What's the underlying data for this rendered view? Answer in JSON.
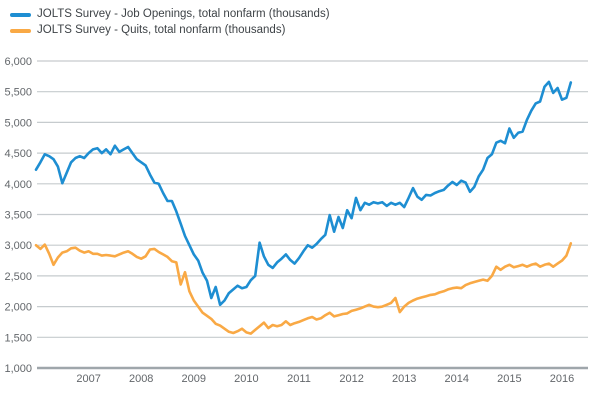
{
  "legend": {
    "series": [
      {
        "label": "JOLTS Survey - Job Openings, total nonfarm (thousands)",
        "color": "#1e8ed2"
      },
      {
        "label": "JOLTS Survey - Quits, total nonfarm (thousands)",
        "color": "#f9a945"
      }
    ]
  },
  "chart_data": {
    "type": "line",
    "title": "",
    "x_start": "2006-01",
    "x_end": "2016-03",
    "x_frequency": "monthly",
    "x_tick_labels": [
      "2007",
      "2008",
      "2009",
      "2010",
      "2011",
      "2012",
      "2013",
      "2014",
      "2015",
      "2016"
    ],
    "x_tick_month_index": [
      12,
      24,
      36,
      48,
      60,
      72,
      84,
      96,
      108,
      120
    ],
    "y_ticks": [
      1000,
      1500,
      2000,
      2500,
      3000,
      3500,
      4000,
      4500,
      5000,
      5500,
      6000
    ],
    "y_tick_labels": [
      "1,000",
      "1,500",
      "2,000",
      "2,500",
      "3,000",
      "3,500",
      "4,000",
      "4,500",
      "5,000",
      "5,500",
      "6,000"
    ],
    "ylim": [
      1000,
      6000
    ],
    "grid": "horizontal",
    "legend_position": "top-left",
    "series": [
      {
        "name": "JOLTS Survey - Job Openings, total nonfarm (thousands)",
        "color": "#1e8ed2",
        "values": [
          4230,
          4350,
          4480,
          4450,
          4400,
          4280,
          4010,
          4180,
          4350,
          4420,
          4450,
          4420,
          4500,
          4560,
          4580,
          4500,
          4560,
          4480,
          4620,
          4520,
          4560,
          4600,
          4500,
          4400,
          4350,
          4300,
          4150,
          4020,
          4000,
          3850,
          3720,
          3720,
          3550,
          3350,
          3150,
          3000,
          2850,
          2750,
          2550,
          2420,
          2140,
          2320,
          2030,
          2100,
          2220,
          2280,
          2340,
          2300,
          2320,
          2430,
          2500,
          3040,
          2820,
          2680,
          2630,
          2720,
          2780,
          2850,
          2760,
          2700,
          2790,
          2900,
          3000,
          2960,
          3020,
          3100,
          3170,
          3490,
          3220,
          3460,
          3280,
          3570,
          3440,
          3770,
          3570,
          3690,
          3660,
          3700,
          3680,
          3700,
          3640,
          3690,
          3660,
          3690,
          3620,
          3770,
          3930,
          3790,
          3740,
          3820,
          3810,
          3850,
          3880,
          3900,
          3970,
          4030,
          3980,
          4050,
          4020,
          3870,
          3950,
          4120,
          4230,
          4420,
          4480,
          4670,
          4700,
          4660,
          4900,
          4750,
          4830,
          4850,
          5040,
          5190,
          5310,
          5340,
          5580,
          5660,
          5480,
          5560,
          5370,
          5400,
          5650
        ]
      },
      {
        "name": "JOLTS Survey - Quits, total nonfarm (thousands)",
        "color": "#f9a945",
        "values": [
          3000,
          2940,
          3010,
          2860,
          2680,
          2800,
          2880,
          2900,
          2950,
          2960,
          2910,
          2880,
          2900,
          2860,
          2860,
          2830,
          2840,
          2830,
          2820,
          2850,
          2880,
          2900,
          2860,
          2810,
          2780,
          2820,
          2930,
          2940,
          2890,
          2850,
          2810,
          2740,
          2720,
          2360,
          2560,
          2250,
          2100,
          2000,
          1900,
          1850,
          1800,
          1720,
          1690,
          1640,
          1590,
          1570,
          1600,
          1640,
          1580,
          1560,
          1620,
          1680,
          1740,
          1650,
          1700,
          1680,
          1700,
          1760,
          1700,
          1730,
          1750,
          1780,
          1810,
          1830,
          1790,
          1810,
          1860,
          1900,
          1840,
          1860,
          1880,
          1890,
          1930,
          1950,
          1970,
          2000,
          2030,
          2000,
          1990,
          2000,
          2030,
          2060,
          2140,
          1910,
          2000,
          2060,
          2100,
          2130,
          2150,
          2170,
          2190,
          2200,
          2230,
          2250,
          2280,
          2300,
          2310,
          2300,
          2350,
          2380,
          2400,
          2420,
          2440,
          2420,
          2500,
          2650,
          2600,
          2650,
          2680,
          2640,
          2660,
          2680,
          2650,
          2680,
          2700,
          2650,
          2680,
          2700,
          2650,
          2700,
          2750,
          2830,
          3030
        ]
      }
    ]
  },
  "colors": {
    "background": "#ffffff",
    "gridline": "#c6cbce",
    "axis_line": "#9fa6ab",
    "tick_label": "#63676b",
    "legend_text": "#3e4347"
  }
}
